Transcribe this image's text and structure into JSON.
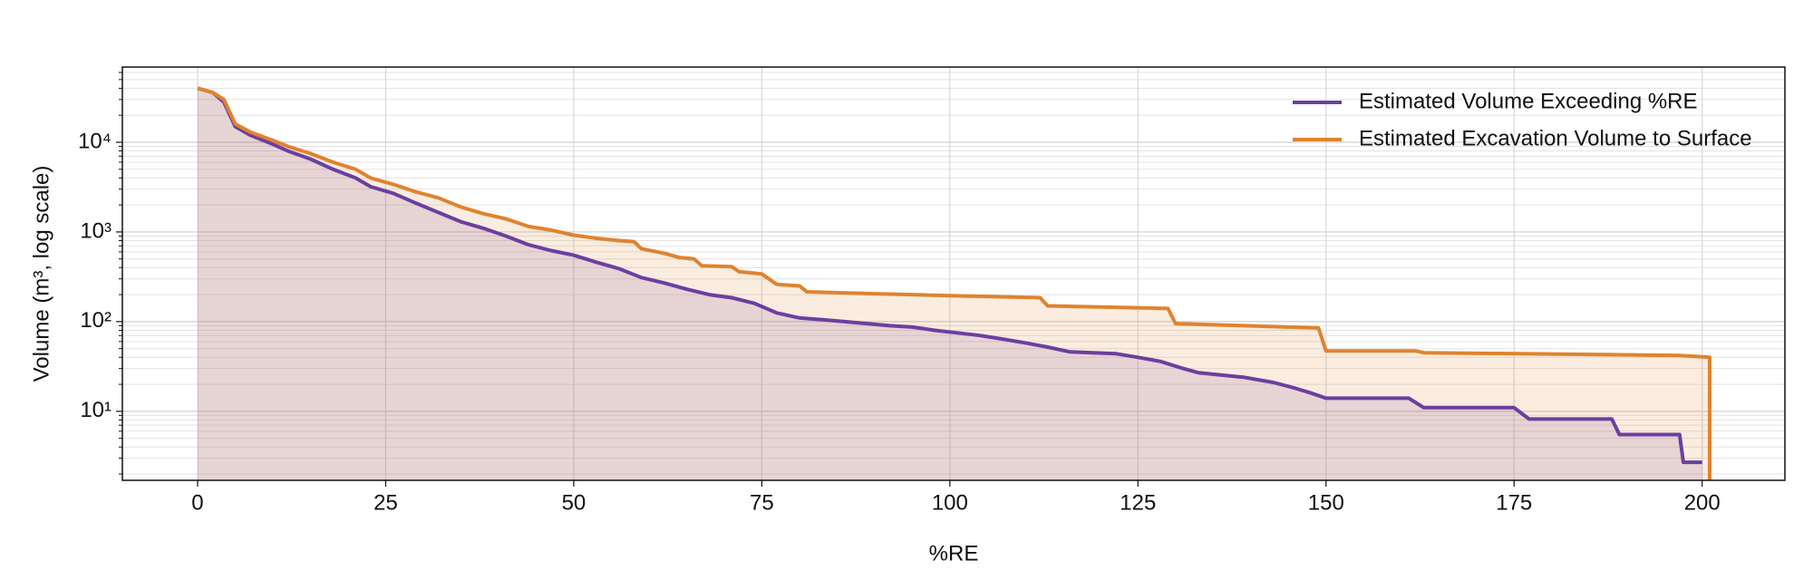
{
  "chart_data": {
    "type": "line",
    "xlabel": "%RE",
    "ylabel": "Volume (m³, log scale)",
    "ylog": true,
    "grid": true,
    "legend": "upper right",
    "fill_opacity": 0.15,
    "xlim": [
      -10,
      211
    ],
    "xticks": [
      0,
      25,
      50,
      75,
      100,
      125,
      150,
      175,
      200
    ],
    "ylim": [
      1.7,
      69000
    ],
    "yticks": [
      {
        "value": 10,
        "label": "10¹"
      },
      {
        "value": 100,
        "label": "10²"
      },
      {
        "value": 1000,
        "label": "10³"
      },
      {
        "value": 10000,
        "label": "10⁴"
      }
    ],
    "yminorticks": [
      2,
      3,
      4,
      5,
      6,
      7,
      8,
      9,
      20,
      30,
      40,
      50,
      60,
      70,
      80,
      90,
      200,
      300,
      400,
      500,
      600,
      700,
      800,
      900,
      2000,
      3000,
      4000,
      5000,
      6000,
      7000,
      8000,
      9000,
      20000,
      30000,
      40000,
      50000,
      60000
    ],
    "series": [
      {
        "name": "Estimated Volume Exceeding %RE",
        "color": "#6b3fa0",
        "x": [
          0,
          2,
          3.5,
          5,
          7,
          10,
          12,
          15,
          18,
          21,
          23,
          26,
          29,
          32,
          35,
          38,
          41,
          44,
          47,
          50,
          53,
          56,
          59,
          62,
          65,
          68,
          71,
          74,
          77,
          80,
          83,
          86,
          89,
          92,
          95,
          98,
          101,
          104,
          107,
          110,
          113,
          116,
          122,
          125,
          128,
          131,
          133,
          139,
          143,
          146,
          148,
          150,
          161,
          163,
          175,
          177,
          188,
          189,
          197,
          197.5,
          200
        ],
        "values": [
          40000,
          36000,
          28000,
          15000,
          12000,
          9500,
          8000,
          6500,
          5000,
          4000,
          3200,
          2700,
          2100,
          1650,
          1300,
          1100,
          900,
          720,
          620,
          550,
          460,
          390,
          310,
          270,
          230,
          200,
          185,
          160,
          125,
          110,
          105,
          100,
          95,
          90,
          87,
          80,
          75,
          70,
          64,
          58,
          52,
          46,
          44,
          40,
          36,
          30,
          27,
          24,
          21,
          18,
          16,
          14,
          14,
          11,
          11,
          8.2,
          8.2,
          5.5,
          5.5,
          2.7,
          2.7
        ]
      },
      {
        "name": "Estimated Excavation Volume to Surface",
        "color": "#e0832f",
        "x": [
          0,
          2,
          3.5,
          5,
          7,
          10,
          12,
          15,
          18,
          21,
          23,
          26,
          29,
          32,
          35,
          38,
          41,
          44,
          47,
          50,
          53,
          56,
          58,
          59,
          62,
          64,
          66,
          67,
          71,
          72,
          75,
          77,
          80,
          81,
          90,
          100,
          112,
          113,
          129,
          130,
          149,
          150,
          162,
          163,
          197,
          201,
          201
        ],
        "values": [
          40000,
          36000,
          30000,
          16000,
          13000,
          10500,
          9000,
          7500,
          6000,
          5000,
          4000,
          3400,
          2800,
          2400,
          1900,
          1600,
          1400,
          1150,
          1050,
          920,
          850,
          800,
          780,
          650,
          580,
          520,
          500,
          420,
          410,
          360,
          340,
          260,
          250,
          215,
          205,
          195,
          185,
          150,
          140,
          95,
          85,
          47,
          47,
          45,
          42,
          40,
          1
        ]
      }
    ]
  }
}
